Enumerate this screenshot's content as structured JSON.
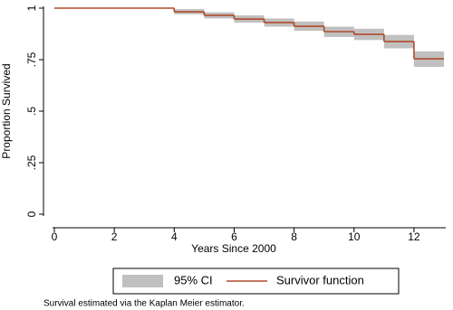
{
  "chart_data": {
    "type": "km-step",
    "x_label": "Years Since 2000",
    "y_label": "Proportion Survived",
    "x": [
      0,
      4,
      5,
      6,
      7,
      8,
      9,
      10,
      11,
      12
    ],
    "series": [
      {
        "name": "Survivor function",
        "color": "#b04a2a",
        "values": [
          1,
          0.982,
          0.965,
          0.947,
          0.93,
          0.912,
          0.886,
          0.873,
          0.838,
          0.754
        ]
      }
    ],
    "ci": {
      "name": "95% CI",
      "color": "#c0c0c0",
      "lower": [
        1,
        0.97,
        0.95,
        0.93,
        0.91,
        0.89,
        0.86,
        0.845,
        0.805,
        0.715
      ],
      "upper": [
        1,
        0.995,
        0.98,
        0.965,
        0.95,
        0.935,
        0.91,
        0.9,
        0.87,
        0.79
      ]
    },
    "xlim": [
      0,
      13
    ],
    "ylim": [
      0,
      1
    ],
    "xticks": [
      0,
      2,
      4,
      6,
      8,
      10,
      12
    ],
    "yticks": [
      0,
      {
        "value": 0.25,
        "label": ".25"
      },
      {
        "value": 0.5,
        "label": ".5"
      },
      {
        "value": 0.75,
        "label": ".75"
      },
      1
    ],
    "note": "Survival estimated via the Kaplan Meier estimator."
  }
}
